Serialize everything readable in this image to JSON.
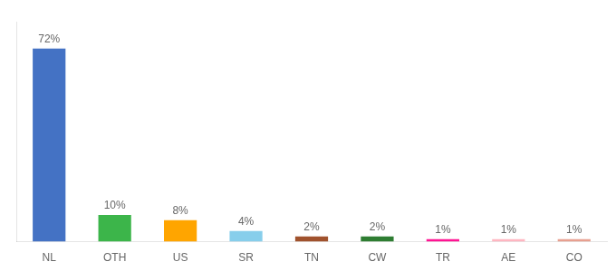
{
  "chart_data": {
    "type": "bar",
    "categories": [
      "NL",
      "OTH",
      "US",
      "SR",
      "TN",
      "CW",
      "TR",
      "AE",
      "CO"
    ],
    "values": [
      72,
      10,
      8,
      4,
      2,
      2,
      1,
      1,
      1
    ],
    "value_labels": [
      "72%",
      "10%",
      "8%",
      "4%",
      "2%",
      "2%",
      "1%",
      "1%",
      "1%"
    ],
    "colors": [
      "#4472c4",
      "#3cb54a",
      "#ffa500",
      "#87ceeb",
      "#a0522d",
      "#2e7d32",
      "#ff1493",
      "#ffb6c1",
      "#e8a090"
    ],
    "ylim": [
      0,
      82
    ],
    "grid": false,
    "data_labels": true,
    "tick_labels": "x"
  }
}
